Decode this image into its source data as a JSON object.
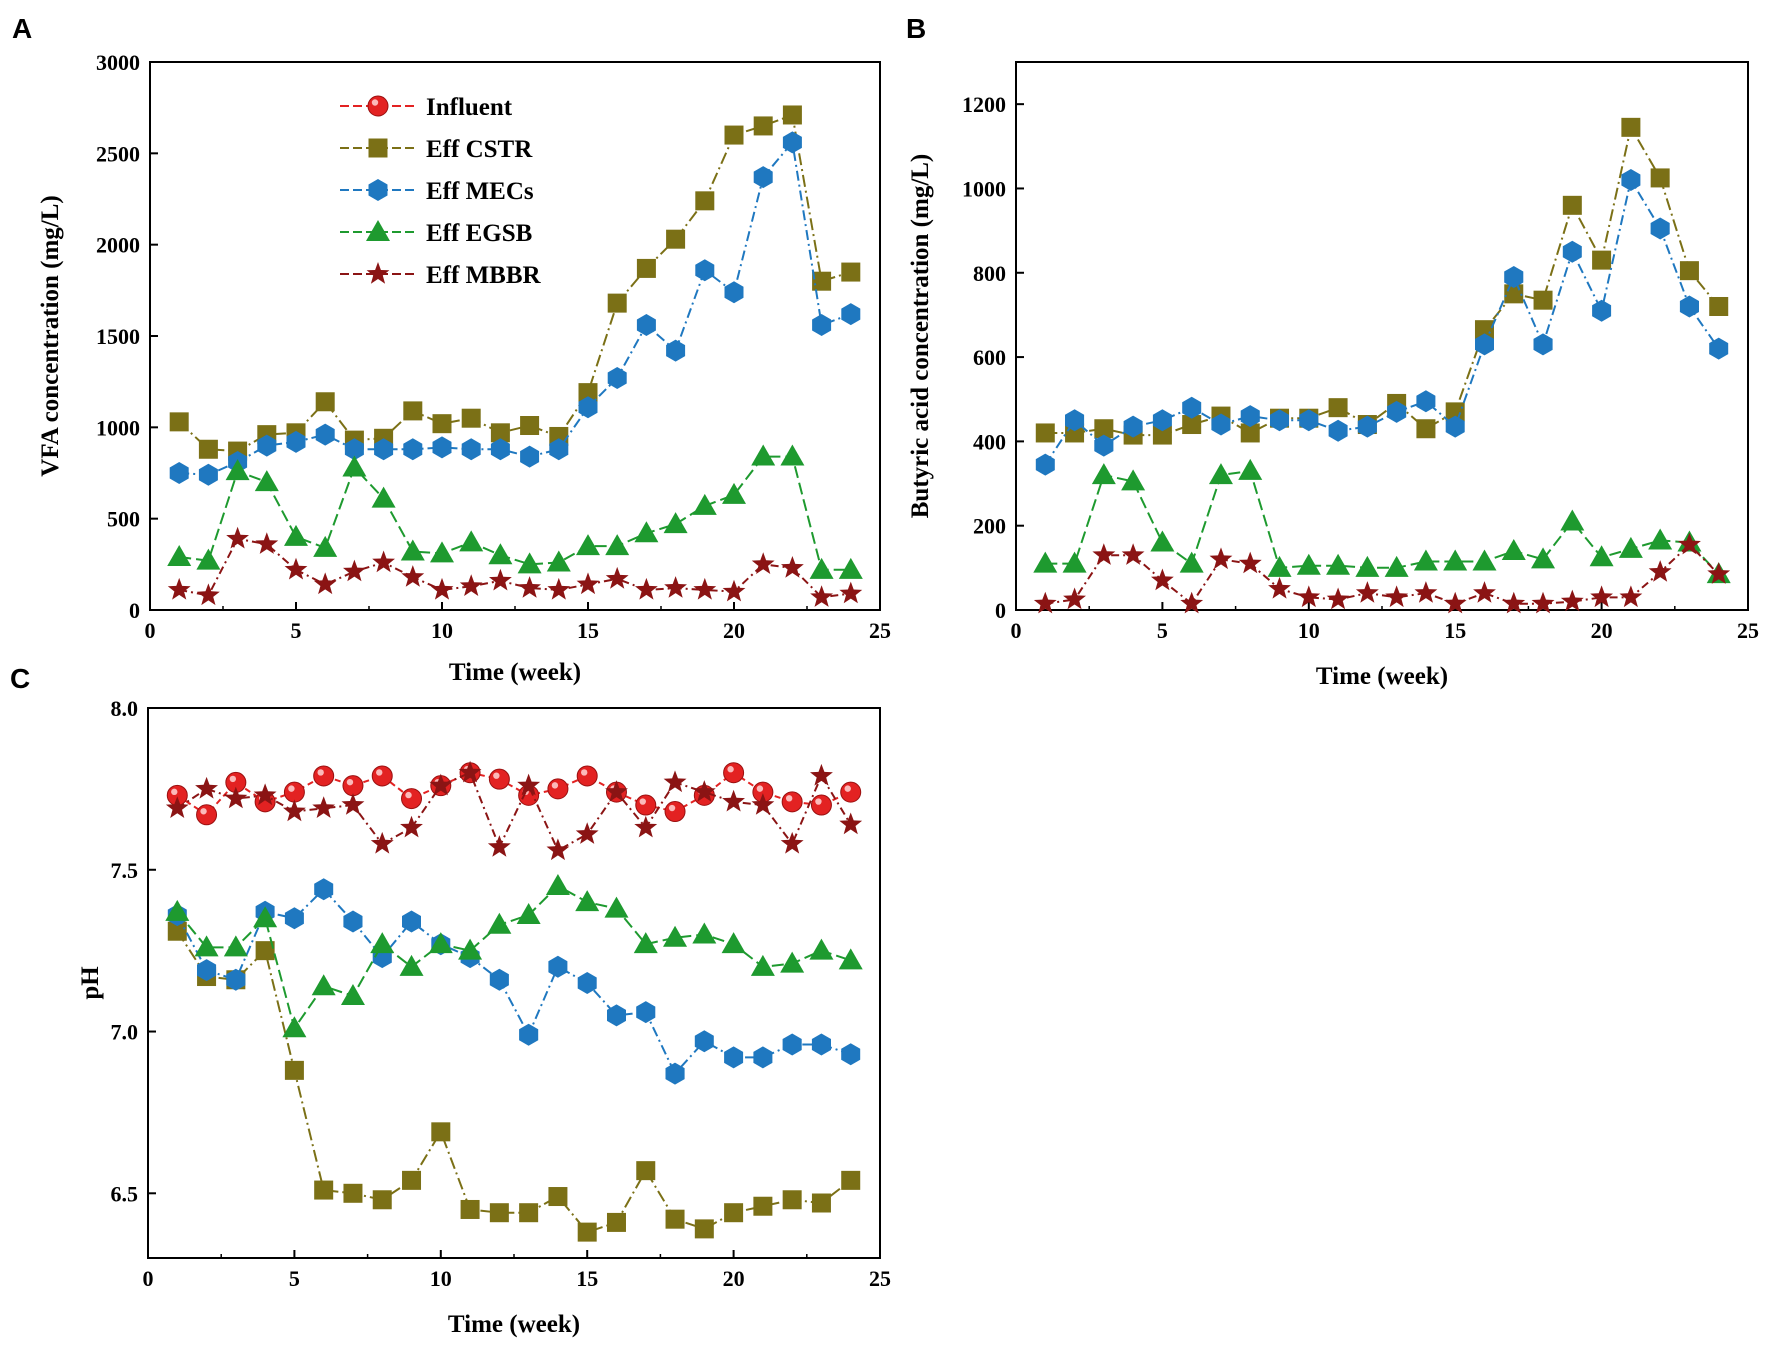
{
  "series_styles": [
    {
      "name": "Influent",
      "color": "#e32222",
      "marker": "circle",
      "dash": "6 4"
    },
    {
      "name": "Eff CSTR",
      "color": "#7b7016",
      "marker": "square",
      "dash": "12 4 2 4"
    },
    {
      "name": "Eff MECs",
      "color": "#1f78c0",
      "marker": "hexagon",
      "dash": "10 4 2 4"
    },
    {
      "name": "Eff EGSB",
      "color": "#1e9a2f",
      "marker": "triangle",
      "dash": "12 5"
    },
    {
      "name": "Eff MBBR",
      "color": "#8b1414",
      "marker": "star",
      "dash": "8 4 2 4"
    }
  ],
  "chart_data": [
    {
      "id": "A",
      "panel_label": "A",
      "type": "line",
      "title": "",
      "xlabel": "Time (week)",
      "ylabel": "VFA concentration (mg/L)",
      "xlim": [
        0,
        25
      ],
      "ylim": [
        0,
        3000
      ],
      "xticks": [
        0,
        5,
        10,
        15,
        20,
        25
      ],
      "yticks": [
        0,
        500,
        1000,
        1500,
        2000,
        2500,
        3000
      ],
      "x": [
        1,
        2,
        3,
        4,
        5,
        6,
        7,
        8,
        9,
        10,
        11,
        12,
        13,
        14,
        15,
        16,
        17,
        18,
        19,
        20,
        21,
        22,
        23,
        24
      ],
      "legend": [
        "Influent",
        "Eff CSTR",
        "Eff MECs",
        "Eff EGSB",
        "Eff MBBR"
      ],
      "series": [
        {
          "name": "Eff CSTR",
          "values": [
            1030,
            880,
            870,
            960,
            970,
            1140,
            930,
            940,
            1090,
            1020,
            1050,
            970,
            1010,
            950,
            1190,
            1680,
            1870,
            2030,
            2240,
            2600,
            2650,
            2710,
            1800,
            1850
          ]
        },
        {
          "name": "Eff MECs",
          "values": [
            750,
            740,
            810,
            900,
            920,
            960,
            880,
            880,
            880,
            890,
            880,
            880,
            840,
            880,
            1110,
            1270,
            1560,
            1420,
            1860,
            1740,
            2370,
            2560,
            1560,
            1620
          ]
        },
        {
          "name": "Eff EGSB",
          "values": [
            290,
            270,
            760,
            700,
            400,
            340,
            780,
            610,
            320,
            310,
            370,
            300,
            250,
            260,
            350,
            350,
            420,
            470,
            570,
            630,
            840,
            840,
            220,
            220
          ]
        },
        {
          "name": "Eff MBBR",
          "values": [
            110,
            80,
            390,
            360,
            220,
            140,
            210,
            260,
            180,
            110,
            130,
            160,
            120,
            110,
            140,
            170,
            110,
            120,
            110,
            100,
            250,
            230,
            70,
            90
          ]
        }
      ]
    },
    {
      "id": "B",
      "panel_label": "B",
      "type": "line",
      "title": "",
      "xlabel": "Time (week)",
      "ylabel": "Butyric acid concentration (mg/L)",
      "xlim": [
        0,
        25
      ],
      "ylim": [
        0,
        1300
      ],
      "xticks": [
        0,
        5,
        10,
        15,
        20,
        25
      ],
      "yticks": [
        0,
        200,
        400,
        600,
        800,
        1000,
        1200
      ],
      "x": [
        1,
        2,
        3,
        4,
        5,
        6,
        7,
        8,
        9,
        10,
        11,
        12,
        13,
        14,
        15,
        16,
        17,
        18,
        19,
        20,
        21,
        22,
        23,
        24
      ],
      "series": [
        {
          "name": "Eff CSTR",
          "values": [
            420,
            420,
            430,
            415,
            415,
            440,
            460,
            420,
            455,
            455,
            480,
            440,
            490,
            430,
            470,
            665,
            750,
            735,
            960,
            830,
            1145,
            1025,
            805,
            720
          ]
        },
        {
          "name": "Eff MECs",
          "values": [
            345,
            450,
            390,
            435,
            450,
            480,
            440,
            460,
            450,
            450,
            425,
            435,
            470,
            495,
            435,
            630,
            790,
            630,
            850,
            710,
            1020,
            905,
            720,
            620
          ]
        },
        {
          "name": "Eff EGSB",
          "values": [
            110,
            110,
            320,
            305,
            160,
            110,
            320,
            330,
            100,
            105,
            105,
            100,
            100,
            115,
            115,
            115,
            140,
            120,
            210,
            125,
            145,
            165,
            160,
            85
          ]
        },
        {
          "name": "Eff MBBR",
          "values": [
            15,
            25,
            130,
            130,
            70,
            15,
            120,
            110,
            50,
            30,
            25,
            40,
            30,
            40,
            15,
            40,
            15,
            15,
            20,
            30,
            30,
            90,
            155,
            85
          ]
        }
      ]
    },
    {
      "id": "C",
      "panel_label": "C",
      "type": "line",
      "title": "",
      "xlabel": "Time (week)",
      "ylabel": "pH",
      "xlim": [
        0,
        25
      ],
      "ylim": [
        6.3,
        8.0
      ],
      "xticks": [
        0,
        5,
        10,
        15,
        20,
        25
      ],
      "yticks": [
        "6.5",
        "7.0",
        "7.5",
        "8.0"
      ],
      "x": [
        1,
        2,
        3,
        4,
        5,
        6,
        7,
        8,
        9,
        10,
        11,
        12,
        13,
        14,
        15,
        16,
        17,
        18,
        19,
        20,
        21,
        22,
        23,
        24
      ],
      "series": [
        {
          "name": "Influent",
          "values": [
            7.73,
            7.67,
            7.77,
            7.71,
            7.74,
            7.79,
            7.76,
            7.79,
            7.72,
            7.76,
            7.8,
            7.78,
            7.73,
            7.75,
            7.79,
            7.74,
            7.7,
            7.68,
            7.73,
            7.8,
            7.74,
            7.71,
            7.7,
            7.74
          ]
        },
        {
          "name": "Eff CSTR",
          "values": [
            7.31,
            7.17,
            7.16,
            7.25,
            6.88,
            6.51,
            6.5,
            6.48,
            6.54,
            6.69,
            6.45,
            6.44,
            6.44,
            6.49,
            6.38,
            6.41,
            6.57,
            6.42,
            6.39,
            6.44,
            6.46,
            6.48,
            6.47,
            6.54
          ]
        },
        {
          "name": "Eff MECs",
          "values": [
            7.36,
            7.19,
            7.16,
            7.37,
            7.35,
            7.44,
            7.34,
            7.23,
            7.34,
            7.27,
            7.23,
            7.16,
            6.99,
            7.2,
            7.15,
            7.05,
            7.06,
            6.87,
            6.97,
            6.92,
            6.92,
            6.96,
            6.96,
            6.93
          ]
        },
        {
          "name": "Eff EGSB",
          "values": [
            7.37,
            7.26,
            7.26,
            7.35,
            7.01,
            7.14,
            7.11,
            7.27,
            7.2,
            7.27,
            7.25,
            7.33,
            7.36,
            7.45,
            7.4,
            7.38,
            7.27,
            7.29,
            7.3,
            7.27,
            7.2,
            7.21,
            7.25,
            7.22
          ]
        },
        {
          "name": "Eff MBBR",
          "values": [
            7.69,
            7.75,
            7.72,
            7.73,
            7.68,
            7.69,
            7.7,
            7.58,
            7.63,
            7.76,
            7.8,
            7.57,
            7.76,
            7.56,
            7.61,
            7.74,
            7.63,
            7.77,
            7.74,
            7.71,
            7.7,
            7.58,
            7.79,
            7.64
          ]
        }
      ]
    }
  ]
}
